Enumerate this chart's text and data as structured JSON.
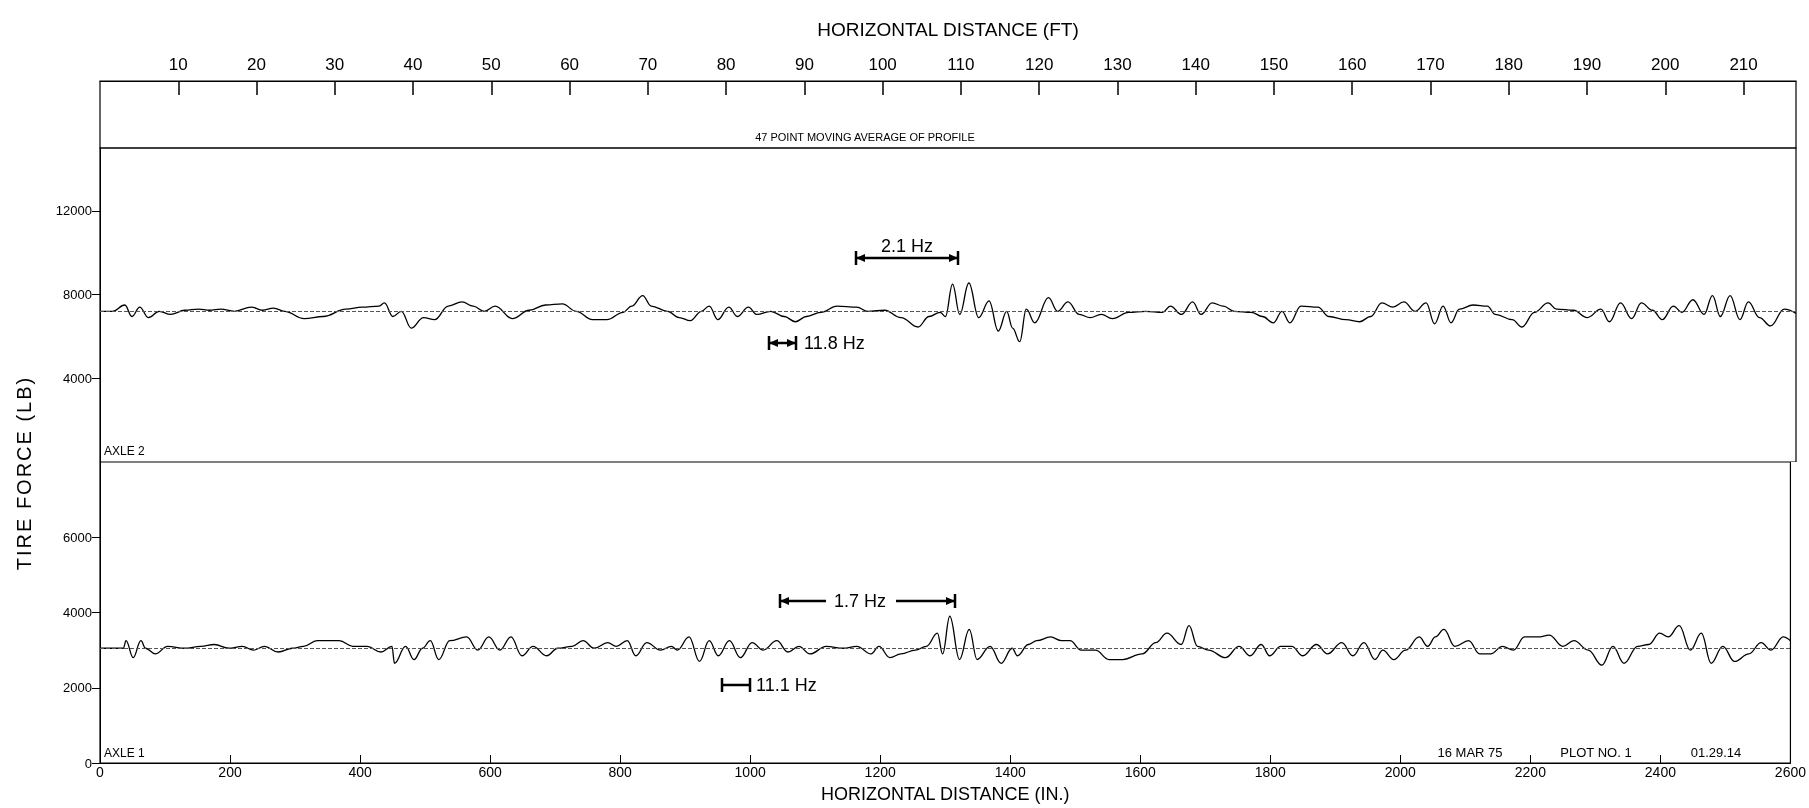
{
  "chart_data": [
    {
      "type": "line",
      "ylabel": "TIRE FORCE (LB)",
      "x2label": "HORIZONTAL DISTANCE (FT)",
      "xlim": [
        0,
        2600
      ],
      "x2lim": [
        0,
        216.7
      ],
      "x2ticks": [
        10,
        20,
        30,
        40,
        50,
        60,
        70,
        80,
        90,
        100,
        110,
        120,
        130,
        140,
        150,
        160,
        170,
        180,
        190,
        200,
        210
      ],
      "ylim": [
        0,
        15000
      ],
      "yticks": [
        4000,
        8000,
        12000
      ],
      "tick_labels": "y",
      "grid": false,
      "marker": "none",
      "line_style": "solid",
      "annotations": [
        "47 POINT MOVING AVERAGE OF PROFILE",
        "AXLE 2",
        "2.1 Hz",
        "11.8 Hz"
      ],
      "ref_lines": [
        {
          "axis": "y",
          "value": 7200,
          "color": "#555555",
          "line_style": "dashed"
        }
      ],
      "series": [
        {
          "color": "#000000",
          "x": [
            0,
            19,
            38,
            49,
            61,
            74,
            91,
            108,
            130,
            151,
            168,
            185,
            206,
            232,
            249,
            266,
            283,
            313,
            342,
            377,
            402,
            428,
            436,
            449,
            462,
            477,
            496,
            513,
            534,
            555,
            572,
            589,
            606,
            632,
            658,
            683,
            709,
            730,
            755,
            777,
            802,
            815,
            832,
            845,
            870,
            888,
            905,
            922,
            934,
            947,
            964,
            977,
            994,
            1007,
            1028,
            1049,
            1066,
            1083,
            1105,
            1130,
            1160,
            1177,
            1203,
            1228,
            1254,
            1271,
            1288,
            1296,
            1307,
            1318,
            1332,
            1347,
            1363,
            1377,
            1390,
            1399,
            1410,
            1420,
            1433,
            1454,
            1468,
            1484,
            1501,
            1518,
            1535,
            1552,
            1577,
            1603,
            1629,
            1641,
            1658,
            1675,
            1688,
            1705,
            1722,
            1739,
            1765,
            1782,
            1799,
            1812,
            1824,
            1841,
            1867,
            1884,
            1910,
            1931,
            1948,
            1965,
            1982,
            1999,
            2016,
            2033,
            2046,
            2059,
            2071,
            2084,
            2105,
            2127,
            2139,
            2165,
            2180,
            2199,
            2220,
            2233,
            2259,
            2280,
            2301,
            2314,
            2331,
            2348,
            2363,
            2380,
            2395,
            2412,
            2425,
            2442,
            2459,
            2472,
            2484,
            2499,
            2514,
            2527,
            2544,
            2561,
            2582,
            2600
          ],
          "values": [
            7200,
            7200,
            7500,
            6950,
            7400,
            6900,
            7200,
            7050,
            7250,
            7300,
            7250,
            7300,
            7200,
            7400,
            7250,
            7350,
            7200,
            6850,
            6950,
            7300,
            7400,
            7450,
            7600,
            6950,
            7200,
            6400,
            6900,
            6800,
            7450,
            7650,
            7450,
            7200,
            7450,
            6850,
            7250,
            7500,
            7550,
            7200,
            6800,
            6800,
            7150,
            7450,
            7950,
            7450,
            7200,
            6900,
            6750,
            7200,
            7450,
            6800,
            7400,
            6950,
            7400,
            7050,
            7200,
            6950,
            6700,
            6950,
            7150,
            7450,
            7400,
            7200,
            7250,
            6900,
            6450,
            6950,
            7150,
            6950,
            8500,
            7050,
            8550,
            6900,
            7700,
            6250,
            7200,
            6400,
            5750,
            7300,
            6650,
            7850,
            7200,
            7650,
            7050,
            6900,
            7050,
            6850,
            7150,
            7200,
            7150,
            7450,
            7050,
            7650,
            7050,
            7600,
            7450,
            7200,
            7150,
            6950,
            6650,
            7200,
            6650,
            7450,
            7400,
            6950,
            6800,
            6700,
            6950,
            7600,
            7400,
            7650,
            7200,
            7600,
            6600,
            7450,
            6650,
            7300,
            7500,
            7450,
            7050,
            6800,
            6450,
            7150,
            7600,
            7300,
            7250,
            6900,
            7300,
            6700,
            7600,
            6850,
            7600,
            7250,
            6800,
            7450,
            7150,
            7750,
            7050,
            7950,
            6950,
            7950,
            6800,
            7650,
            6900,
            6500,
            7300,
            7100
          ]
        }
      ]
    },
    {
      "type": "line",
      "xlabel": "HORIZONTAL DISTANCE (IN.)",
      "xlim": [
        0,
        2600
      ],
      "xticks": [
        0,
        200,
        400,
        600,
        800,
        1000,
        1200,
        1400,
        1600,
        1800,
        2000,
        2200,
        2400,
        2600
      ],
      "ylim": [
        0,
        8000
      ],
      "yticks": [
        0,
        2000,
        4000,
        6000
      ],
      "grid": false,
      "marker": "none",
      "line_style": "solid",
      "annotations": [
        "AXLE 1",
        "1.7 Hz",
        "11.1 Hz",
        "16 MAR 75",
        "PLOT NO. 1",
        "01.29.14"
      ],
      "ref_lines": [
        {
          "axis": "y",
          "value": 3050,
          "color": "#555555",
          "line_style": "dashed"
        }
      ],
      "series": [
        {
          "color": "#000000",
          "x": [
            0,
            36,
            40,
            51,
            63,
            70,
            85,
            104,
            130,
            155,
            176,
            198,
            219,
            236,
            253,
            274,
            296,
            313,
            334,
            368,
            389,
            411,
            432,
            449,
            453,
            470,
            483,
            496,
            508,
            521,
            538,
            564,
            581,
            598,
            615,
            632,
            649,
            666,
            687,
            704,
            726,
            743,
            760,
            781,
            794,
            811,
            824,
            841,
            862,
            879,
            888,
            906,
            922,
            937,
            951,
            968,
            985,
            1003,
            1020,
            1041,
            1058,
            1075,
            1092,
            1117,
            1143,
            1164,
            1186,
            1198,
            1215,
            1232,
            1254,
            1271,
            1288,
            1296,
            1307,
            1322,
            1337,
            1349,
            1369,
            1386,
            1403,
            1411,
            1428,
            1441,
            1462,
            1479,
            1492,
            1509,
            1531,
            1552,
            1573,
            1603,
            1624,
            1641,
            1663,
            1675,
            1688,
            1705,
            1731,
            1752,
            1769,
            1786,
            1799,
            1816,
            1833,
            1850,
            1871,
            1888,
            1910,
            1927,
            1944,
            1961,
            1973,
            1990,
            2008,
            2029,
            2042,
            2054,
            2067,
            2084,
            2105,
            2122,
            2139,
            2157,
            2174,
            2191,
            2212,
            2229,
            2250,
            2267,
            2289,
            2310,
            2327,
            2344,
            2365,
            2382,
            2399,
            2412,
            2429,
            2446,
            2463,
            2478,
            2496,
            2514,
            2536,
            2555,
            2570,
            2589,
            2600
          ],
          "values": [
            3050,
            3050,
            3250,
            2800,
            3250,
            3050,
            2900,
            3100,
            3050,
            3100,
            3150,
            3050,
            3100,
            3000,
            3100,
            2950,
            3050,
            3100,
            3250,
            3250,
            3100,
            3100,
            2950,
            3100,
            2650,
            3100,
            2750,
            3050,
            3250,
            2750,
            3250,
            3350,
            3000,
            3350,
            3000,
            3350,
            2850,
            3100,
            2850,
            3050,
            3100,
            3250,
            3050,
            3200,
            3100,
            3250,
            2850,
            3200,
            3000,
            3100,
            3000,
            3350,
            2700,
            3250,
            2850,
            3250,
            2800,
            3200,
            3000,
            3250,
            2950,
            3100,
            2900,
            3100,
            3050,
            3100,
            2900,
            3100,
            2800,
            2900,
            3000,
            3100,
            3450,
            2900,
            3900,
            2750,
            3550,
            2750,
            3100,
            2650,
            3050,
            2850,
            3150,
            3250,
            3350,
            3250,
            3250,
            3000,
            3000,
            2750,
            2750,
            2900,
            3200,
            3450,
            3150,
            3650,
            3100,
            3000,
            2800,
            3100,
            2850,
            3150,
            2850,
            3100,
            3100,
            2850,
            3150,
            2900,
            3200,
            2850,
            3200,
            2750,
            3000,
            2750,
            3000,
            3350,
            3100,
            3350,
            3550,
            3100,
            3250,
            2900,
            2900,
            3100,
            3000,
            3350,
            3350,
            3400,
            3100,
            3250,
            3000,
            2600,
            3100,
            2650,
            3100,
            3150,
            3450,
            3350,
            3650,
            3000,
            3450,
            2650,
            3100,
            2700,
            2900,
            3200,
            3000,
            3350,
            3250
          ]
        }
      ]
    }
  ]
}
